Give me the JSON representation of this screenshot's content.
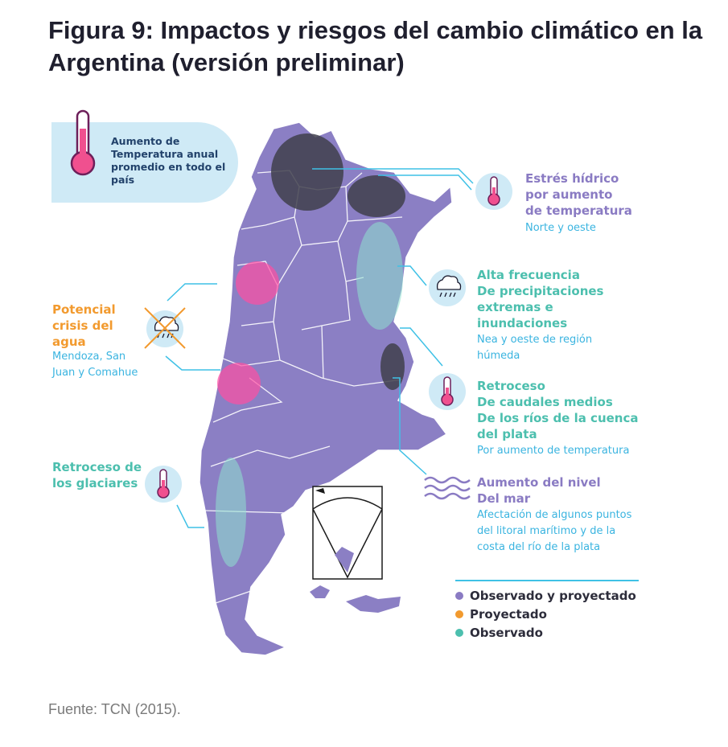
{
  "title": "Figura 9: Impactos y riesgos del cambio climático en la Argentina (versión preliminar)",
  "temperature_box": "Aumento de Temperatura anual promedio en todo el país",
  "callouts": {
    "estres": {
      "title": [
        "Estrés hídrico",
        "por aumento",
        "de temperatura"
      ],
      "subtitle": [
        "Norte y oeste"
      ]
    },
    "precip": {
      "title": [
        "Alta frecuencia",
        "De precipitaciones",
        "extremas e",
        "inundaciones"
      ],
      "subtitle": [
        "Nea y oeste de región",
        "húmeda"
      ]
    },
    "caudales": {
      "title": [
        "Retroceso",
        "De caudales medios",
        "De los ríos de la cuenca",
        "del plata"
      ],
      "subtitle": [
        "Por aumento de temperatura"
      ]
    },
    "mar": {
      "title": [
        "Aumento del nivel",
        "Del mar"
      ],
      "subtitle": [
        "Afectación de algunos puntos",
        "del litoral marítimo y de la",
        "costa del río de la plata"
      ]
    },
    "agua": {
      "title": [
        "Potencial",
        "crisis del",
        "agua"
      ],
      "subtitle": [
        "Mendoza, San",
        "Juan y Comahue"
      ]
    },
    "glaciares": {
      "title": [
        "Retroceso de",
        "los glaciares"
      ]
    }
  },
  "legend": [
    {
      "label": "Observado y proyectado",
      "color": "#8a7bc3"
    },
    {
      "label": "Proyectado",
      "color": "#f29a2e"
    },
    {
      "label": "Observado",
      "color": "#4cbfae"
    }
  ],
  "source": "Fuente: TCN (2015)."
}
